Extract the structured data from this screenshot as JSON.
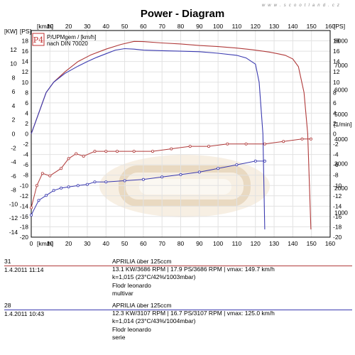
{
  "header": {
    "title": "Power - Diagram",
    "watermark": "w w w . s c o o t l a n d . c z"
  },
  "legend": {
    "badge": "P4",
    "line1": "P/UPMgem / [km/h]",
    "line2": "nach DIN 70020"
  },
  "axes": {
    "x_unit_top": "[km/h]",
    "x_unit_bottom": "[km/h]",
    "x_ticks": [
      0,
      10,
      20,
      30,
      40,
      50,
      60,
      70,
      80,
      90,
      100,
      110,
      120,
      130,
      140,
      150,
      160
    ],
    "kw_label": "[KW]",
    "kw_ticks": [
      12,
      10,
      8,
      6,
      4,
      2,
      0,
      -2,
      -4,
      -6,
      -8,
      -10,
      -12,
      -14
    ],
    "ps_label": "[PS]",
    "ps_left_ticks": [
      18,
      16,
      14,
      12,
      10,
      8,
      6,
      4,
      2,
      0,
      -2,
      -4,
      -6,
      -8,
      -10,
      -12,
      -14,
      -16,
      -18,
      -20
    ],
    "ps_right_ticks": [
      18,
      16,
      14,
      12,
      10,
      8,
      6,
      4,
      2,
      0,
      -2,
      -4,
      -6,
      -8,
      -10,
      -12,
      -14,
      -16,
      -18,
      -20
    ],
    "rpm_label": "[1/min]",
    "rpm_ticks": [
      8000,
      7000,
      6000,
      5000,
      4000,
      3000,
      2000,
      1000
    ]
  },
  "chart_data": {
    "type": "line",
    "title": "Power - Diagram",
    "xlabel": "[km/h]",
    "ylabel": "[KW] [PS]",
    "xlim": [
      0,
      160
    ],
    "ylim_ps": [
      -20,
      20
    ],
    "ylim_rpm": [
      0,
      8000
    ],
    "series": [
      {
        "name": "31",
        "color": "#b03a3a",
        "power_ps": {
          "x": [
            0,
            3,
            8,
            12,
            18,
            25,
            32,
            40,
            48,
            55,
            60,
            70,
            80,
            90,
            100,
            110,
            118,
            124,
            128,
            132,
            136,
            140,
            143,
            146,
            148,
            149.7
          ],
          "y": [
            0,
            3,
            8,
            10,
            12,
            14,
            15.3,
            16.4,
            17.3,
            17.9,
            17.85,
            17.6,
            17.4,
            17.1,
            16.9,
            16.6,
            16.3,
            16,
            15.8,
            15.5,
            15.2,
            14.5,
            13,
            8,
            0,
            -18.5
          ]
        },
        "rpm": {
          "x": [
            0,
            3,
            6,
            10,
            16,
            20,
            24,
            28,
            34,
            40,
            46,
            55,
            65,
            75,
            85,
            95,
            105,
            115,
            125,
            135,
            145,
            149.7
          ],
          "y": [
            1200,
            2100,
            2600,
            2500,
            2800,
            3200,
            3400,
            3300,
            3500,
            3500,
            3500,
            3500,
            3500,
            3600,
            3700,
            3700,
            3800,
            3800,
            3800,
            3900,
            4000,
            4000
          ]
        }
      },
      {
        "name": "28",
        "color": "#3a3ab0",
        "power_ps": {
          "x": [
            0,
            3,
            8,
            12,
            18,
            25,
            30,
            35,
            40,
            45,
            50,
            55,
            60,
            70,
            80,
            90,
            100,
            110,
            115,
            120,
            122,
            124,
            125
          ],
          "y": [
            0,
            3,
            8,
            10,
            11.7,
            13.1,
            14,
            14.8,
            15.5,
            16.2,
            16.5,
            16.4,
            16.2,
            16.1,
            16,
            15.9,
            15.6,
            15.2,
            14.7,
            13.5,
            10,
            0,
            -18.5
          ]
        },
        "rpm": {
          "x": [
            0,
            4,
            8,
            12,
            16,
            20,
            25,
            30,
            34,
            40,
            50,
            60,
            70,
            80,
            90,
            100,
            110,
            120,
            125
          ],
          "y": [
            900,
            1500,
            1700,
            1900,
            2000,
            2050,
            2100,
            2150,
            2250,
            2250,
            2300,
            2350,
            2450,
            2550,
            2650,
            2800,
            2950,
            3100,
            3100
          ]
        }
      }
    ]
  },
  "runs": [
    {
      "id": "31",
      "datetime": "1.4.2011  11:14",
      "line_color": "#b03a3a",
      "model": "APRILIA über 125ccm",
      "values": "13.1 KW/3686 RPM  |  17.9 PS/3686 RPM  |  vmax: 149.7 km/h",
      "conditions": "k=1,015 (23°C/42%/1003mbar)",
      "operator": "Flodr leonardo",
      "note": "multivar"
    },
    {
      "id": "28",
      "datetime": "1.4.2011  10:43",
      "line_color": "#3a3ab0",
      "model": "APRILIA über 125ccm",
      "values": "12.3 KW/3107 RPM  |  16.7 PS/3107 RPM  |  vmax: 125.0 km/h",
      "conditions": "k=1,014 (23°C/43%/1004mbar)",
      "operator": "Flodr leonardo",
      "note": "serie"
    }
  ]
}
